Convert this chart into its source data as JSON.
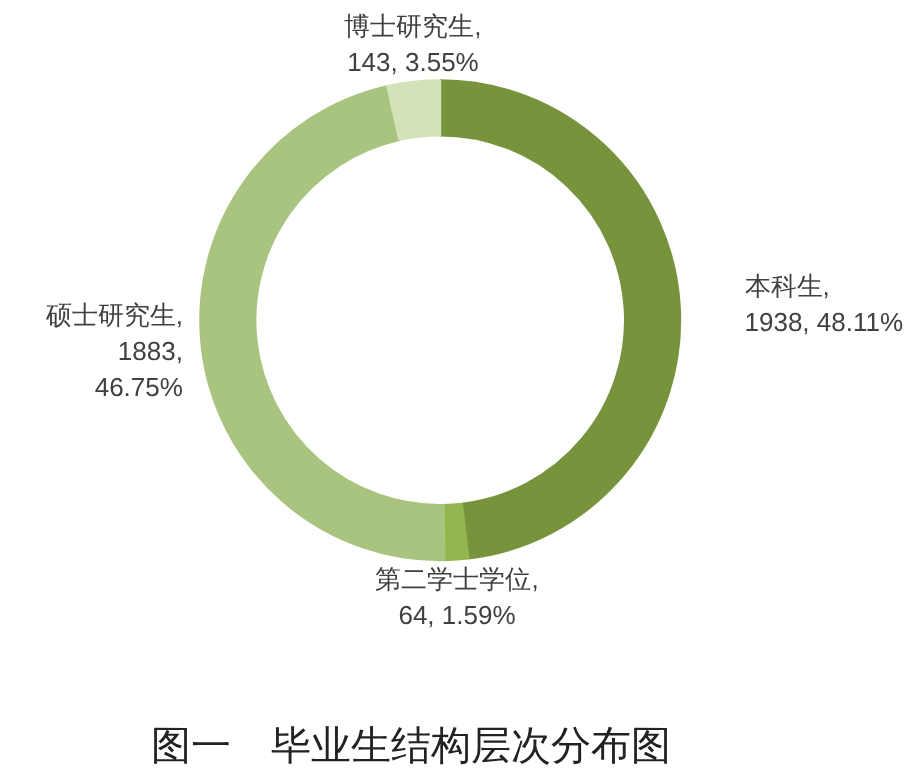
{
  "chart_data": {
    "type": "donut",
    "title": "图一　毕业生结构层次分布图",
    "categories": [
      "本科生",
      "第二学士学位",
      "硕士研究生",
      "博士研究生"
    ],
    "values": [
      1938,
      64,
      1883,
      143
    ],
    "colors": [
      "#77933c",
      "#93b54e",
      "#a9c47f",
      "#d3e2b8"
    ],
    "value_labels": [
      ",\n1938, 48.11%",
      ",\n64, 1.59%",
      ",\n1883,\n46.75%",
      ",\n143, 3.55%"
    ]
  }
}
